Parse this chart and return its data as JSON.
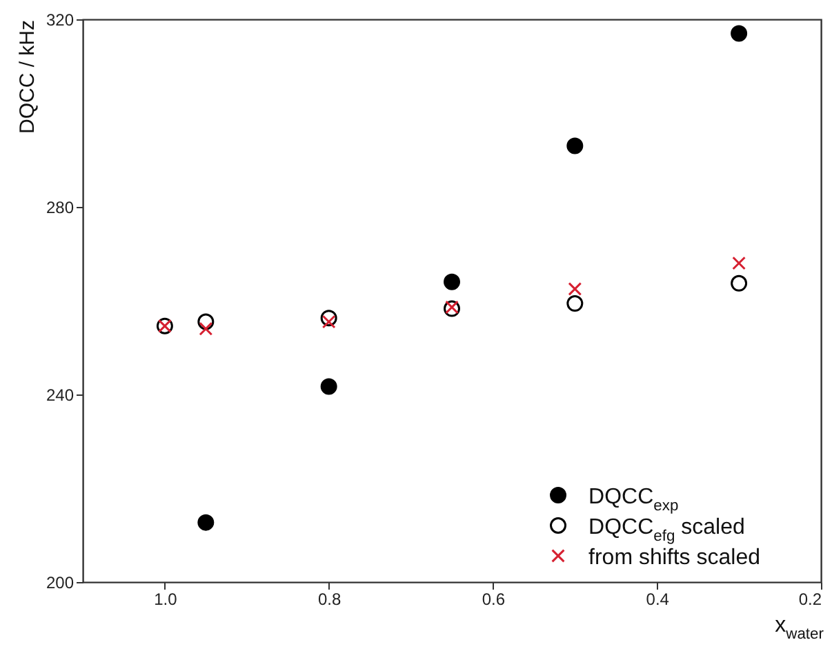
{
  "chart_data": {
    "type": "scatter",
    "xlabel": "x$_{water}$",
    "ylabel": "DQCC / kHz",
    "x": [
      1.0,
      0.95,
      0.8,
      0.65,
      0.5,
      0.3
    ],
    "series": [
      {
        "name": "DQCC$_{exp}$",
        "color": "#000000",
        "marker": "circle",
        "values": [
          null,
          212.7,
          241.7,
          264,
          293,
          317
        ]
      },
      {
        "name": "DQCC$_{efg}$ scaled",
        "color": "#000000",
        "marker": "circle-open",
        "values": [
          254.6,
          255.5,
          256.3,
          258.3,
          259.4,
          263.7
        ]
      },
      {
        "name": "from shifts scaled",
        "color": "#d62031",
        "marker": "cross",
        "values": [
          254.6,
          254,
          255.5,
          258.6,
          262.5,
          268
        ]
      }
    ],
    "xlim": [
      1.1,
      0.2
    ],
    "xticks": [
      {
        "value": 1.0,
        "label": "1.0"
      },
      0.8,
      0.6,
      0.4,
      0.2
    ],
    "ylim": [
      200,
      320
    ],
    "yticks": [
      200,
      240,
      280,
      320
    ],
    "grid": false,
    "legend": "bottom right"
  }
}
